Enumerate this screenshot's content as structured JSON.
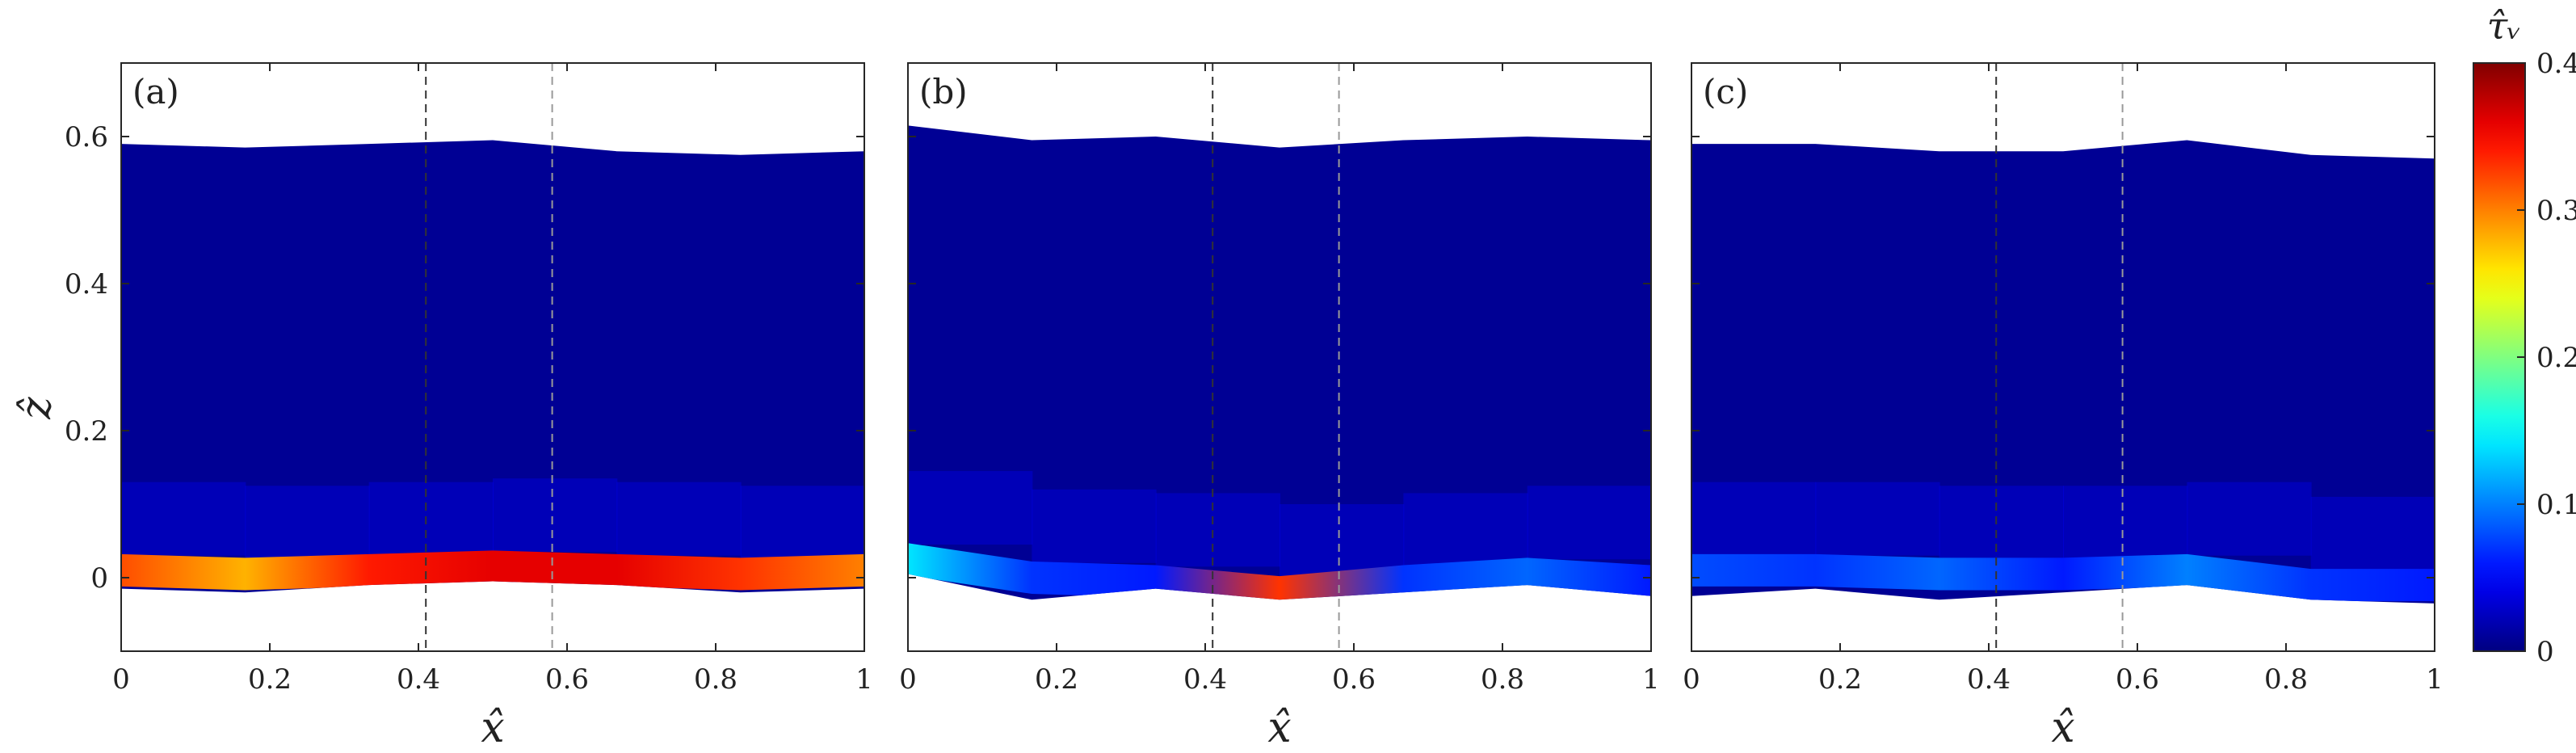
{
  "figure": {
    "colorbar": {
      "title": "τ̂ᵥ",
      "ticks": [
        "0",
        "0.1",
        "0.2",
        "0.3",
        "0.4"
      ],
      "range": [
        0,
        0.4
      ],
      "colormap": "jet"
    },
    "x_ticks": [
      "0",
      "0.2",
      "0.4",
      "0.6",
      "0.8",
      "1"
    ],
    "y_ticks": [
      "0",
      "0.2",
      "0.4",
      "0.6"
    ],
    "xlabel": "x̂",
    "ylabel": "ẑ"
  },
  "chart_data": [
    {
      "type": "heatmap",
      "panel": "(a)",
      "xlim": [
        0,
        1
      ],
      "ylim": [
        -0.1,
        0.7
      ],
      "x": [
        0,
        0.1667,
        0.3333,
        0.5,
        0.6667,
        0.8333,
        1
      ],
      "top_boundary": [
        0.59,
        0.585,
        0.59,
        0.595,
        0.58,
        0.575,
        0.58
      ],
      "bottom_boundary": [
        -0.015,
        -0.02,
        -0.01,
        -0.005,
        -0.01,
        -0.02,
        -0.015
      ],
      "band_center": [
        0.01,
        0.005,
        0.01,
        0.015,
        0.01,
        0.005,
        0.01
      ],
      "band_peak": [
        0.32,
        0.28,
        0.34,
        0.36,
        0.36,
        0.33,
        0.3
      ],
      "vlines": [
        0.41,
        0.58
      ],
      "grid": false
    },
    {
      "type": "heatmap",
      "panel": "(b)",
      "xlim": [
        0,
        1
      ],
      "ylim": [
        -0.1,
        0.7
      ],
      "x": [
        0,
        0.1667,
        0.3333,
        0.5,
        0.6667,
        0.8333,
        1
      ],
      "top_boundary": [
        0.615,
        0.595,
        0.6,
        0.585,
        0.595,
        0.6,
        0.595
      ],
      "bottom_boundary": [
        0.005,
        -0.03,
        -0.015,
        -0.03,
        -0.02,
        -0.01,
        -0.025
      ],
      "band_center": [
        0.025,
        0.0,
        -0.005,
        -0.02,
        -0.005,
        0.005,
        -0.005
      ],
      "band_peak": [
        0.14,
        0.07,
        0.06,
        0.33,
        0.07,
        0.09,
        0.06
      ],
      "vlines": [
        0.41,
        0.58
      ],
      "grid": false
    },
    {
      "type": "heatmap",
      "panel": "(c)",
      "xlim": [
        0,
        1
      ],
      "ylim": [
        -0.1,
        0.7
      ],
      "x": [
        0,
        0.1667,
        0.3333,
        0.5,
        0.6667,
        0.8333,
        1
      ],
      "top_boundary": [
        0.59,
        0.59,
        0.58,
        0.58,
        0.595,
        0.575,
        0.57
      ],
      "bottom_boundary": [
        -0.025,
        -0.015,
        -0.03,
        -0.02,
        -0.01,
        -0.03,
        -0.035
      ],
      "band_center": [
        0.01,
        0.01,
        0.005,
        0.005,
        0.01,
        -0.01,
        -0.01
      ],
      "band_peak": [
        0.08,
        0.07,
        0.09,
        0.06,
        0.1,
        0.07,
        0.06
      ],
      "vlines": [
        0.41,
        0.58
      ],
      "grid": false
    }
  ]
}
